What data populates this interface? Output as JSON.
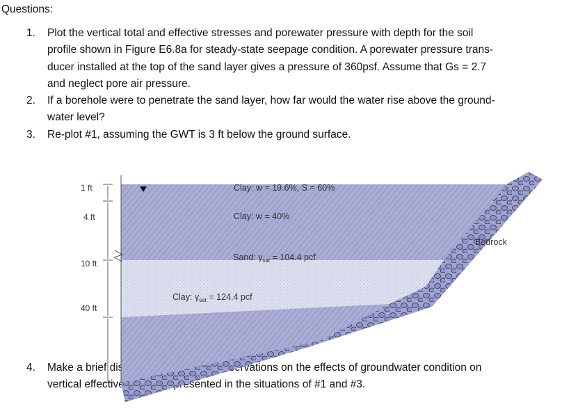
{
  "heading": "Questions:",
  "questions": [
    {
      "number": "1.",
      "lines": [
        "Plot the vertical total and effective stresses and porewater pressure with depth for the soil",
        "profile shown in Figure E6.8a for steady-state seepage condition. A porewater pressure trans-",
        "ducer installed at the top of the sand layer gives a pressure of 360psf. Assume that Gs = 2.7",
        "and neglect pore air pressure."
      ]
    },
    {
      "number": "2.",
      "lines": [
        "If a borehole were to penetrate the sand layer, how far would the water rise above the ground-",
        "water level?"
      ]
    },
    {
      "number": "3.",
      "lines": [
        "Re-plot #1, assuming the GWT is 3 ft below the ground surface."
      ]
    },
    {
      "number": "4.",
      "lines": [
        "Make a brief discussion about your observations on the effects of groundwater condition on",
        "vertical effective stress as presented in the situations of #1 and #3."
      ]
    }
  ],
  "figure": {
    "depths": [
      "1 ft",
      "4 ft",
      "10 ft",
      "40 ft"
    ],
    "layers": {
      "clay1": "Clay: w = 19.6%, S = 60%",
      "clay2": "Clay: w = 40%",
      "sand_prefix": "Sand: γ",
      "sand_sub": "sat",
      "sand_value": " = 104.4 pcf",
      "clay3_prefix": "Clay: γ",
      "clay3_sub": "sat",
      "clay3_value": " = 124.4 pcf",
      "bedrock": "Bedrock"
    },
    "water_table_icon": "inverted-triangle-icon",
    "colors": {
      "clay": "#a9acd6",
      "sand": "#dcdff0",
      "bedrock": "#8e92cc"
    }
  }
}
